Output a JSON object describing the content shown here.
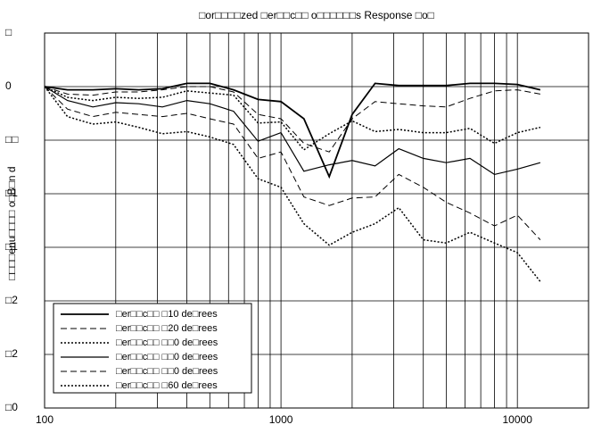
{
  "chart_data": {
    "type": "line",
    "title": "□or□□□□zed □er□□c□□ o□□□□□□s Response □o□",
    "y_label": "□□□□enu□□□□ o□B□n d",
    "log_x": true,
    "grid": true,
    "minor_grid": true,
    "legend_position": "lower left",
    "x": [
      100,
      125,
      160,
      200,
      250,
      315,
      400,
      500,
      630,
      800,
      1000,
      1250,
      1600,
      2000,
      2500,
      3150,
      4000,
      5000,
      6300,
      8000,
      10000,
      12500
    ],
    "xlim": [
      100,
      20000
    ],
    "xticks": [
      100,
      1000,
      10000
    ],
    "ylim": [
      -30,
      5
    ],
    "yticks": [
      {
        "value": 5,
        "label": "□"
      },
      0,
      {
        "value": -5,
        "label": "□□"
      },
      {
        "value": -10,
        "label": "□1"
      },
      {
        "value": -15,
        "label": "□1"
      },
      {
        "value": -20,
        "label": "□2"
      },
      {
        "value": -25,
        "label": "□2"
      },
      {
        "value": -30,
        "label": "□0"
      }
    ],
    "series": [
      {
        "name": "□er□□c□□ □10 de□rees",
        "color": "#000000",
        "dash": "solid",
        "width": 1.8,
        "values": [
          0,
          -0.3,
          -0.3,
          -0.2,
          -0.3,
          -0.2,
          0.3,
          0.3,
          -0.3,
          -1.2,
          -1.4,
          -3,
          -8.4,
          -2.6,
          0.3,
          0.1,
          0.1,
          0.1,
          0.3,
          0.3,
          0.2,
          -0.3
        ]
      },
      {
        "name": "□er□□c□□ □20 de□rees",
        "color": "#000000",
        "dash": "dashed",
        "width": 1,
        "values": [
          0,
          -0.7,
          -0.8,
          -0.5,
          -0.5,
          -0.3,
          0,
          0,
          -0.5,
          -2.6,
          -3,
          -5.3,
          -6.1,
          -3,
          -1.4,
          -1.6,
          -1.8,
          -1.9,
          -1.1,
          -0.4,
          -0.3,
          -0.7
        ]
      },
      {
        "name": "□er□□c□□ □□0 de□rees",
        "color": "#000000",
        "dash": "dotted",
        "width": 1.5,
        "values": [
          0,
          -1,
          -1.3,
          -1,
          -1.1,
          -1,
          -0.4,
          -0.6,
          -0.8,
          -3.4,
          -3.3,
          -5.9,
          -4.4,
          -3.2,
          -4.2,
          -4,
          -4.3,
          -4.3,
          -3.9,
          -5.3,
          -4.3,
          -3.8
        ]
      },
      {
        "name": "□er□□c□□ □□0 de□rees",
        "color": "#000000",
        "dash": "solid",
        "width": 1.2,
        "values": [
          0,
          -1.3,
          -1.9,
          -1.5,
          -1.6,
          -1.9,
          -1.3,
          -1.6,
          -2.3,
          -5.1,
          -4.3,
          -7.9,
          -7.3,
          -6.9,
          -7.4,
          -5.8,
          -6.7,
          -7.1,
          -6.7,
          -8.2,
          -7.7,
          -7.1
        ]
      },
      {
        "name": "□er□□c□□ □□0 de□rees",
        "color": "#000000",
        "dash": "dashed",
        "width": 1,
        "values": [
          0,
          -2.1,
          -2.8,
          -2.4,
          -2.6,
          -2.8,
          -2.5,
          -3,
          -3.5,
          -6.7,
          -6.1,
          -10.3,
          -11.1,
          -10.4,
          -10.3,
          -8.2,
          -9.4,
          -10.8,
          -11.8,
          -13,
          -12,
          -14.3
        ]
      },
      {
        "name": "□er□□c□□ □60 de□rees",
        "color": "#000000",
        "dash": "dotted",
        "width": 1.5,
        "values": [
          0,
          -2.8,
          -3.5,
          -3.3,
          -3.8,
          -4.4,
          -4.2,
          -4.7,
          -5.4,
          -8.6,
          -9.4,
          -12.8,
          -14.8,
          -13.6,
          -12.8,
          -11.3,
          -14.3,
          -14.6,
          -13.6,
          -14.6,
          -15.5,
          -18.2
        ]
      }
    ]
  }
}
